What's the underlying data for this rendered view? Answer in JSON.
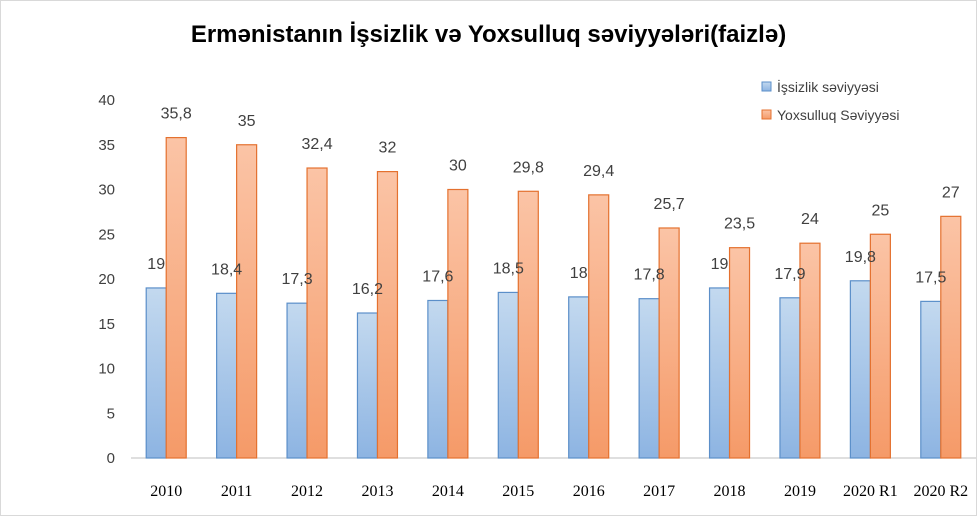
{
  "chart_data": {
    "type": "bar",
    "title": "Ermənistanın İşsizlik və Yoxsulluq səviyyələri(faizlə)",
    "categories": [
      "2010",
      "2011",
      "2012",
      "2013",
      "2014",
      "2015",
      "2016",
      "2017",
      "2018",
      "2019",
      "2020 R1",
      "2020 R2"
    ],
    "series": [
      {
        "name": "İşsizlik səviyyəsi",
        "color": "#9dc3e6",
        "values": [
          19,
          18.4,
          17.3,
          16.2,
          17.6,
          18.5,
          18,
          17.8,
          19,
          17.9,
          19.8,
          17.5
        ],
        "labels": [
          "19",
          "18,4",
          "17,3",
          "16,2",
          "17,6",
          "18,5",
          "18",
          "17,8",
          "19",
          "17,9",
          "19,8",
          "17,5"
        ]
      },
      {
        "name": "Yoxsulluq Səviyyəsi",
        "color": "#f8a97f",
        "values": [
          35.8,
          35,
          32.4,
          32,
          30,
          29.8,
          29.4,
          25.7,
          23.5,
          24,
          25,
          27
        ],
        "labels": [
          "35,8",
          "35",
          "32,4",
          "32",
          "30",
          "29,8",
          "29,4",
          "25,7",
          "23,5",
          "24",
          "25",
          "27"
        ]
      }
    ],
    "ylim": [
      0,
      40
    ],
    "yticks": [
      "0",
      "5",
      "10",
      "15",
      "20",
      "25",
      "30",
      "35",
      "40"
    ],
    "xlabel": "",
    "ylabel": "",
    "grid": false,
    "legend_position": "top-right"
  }
}
